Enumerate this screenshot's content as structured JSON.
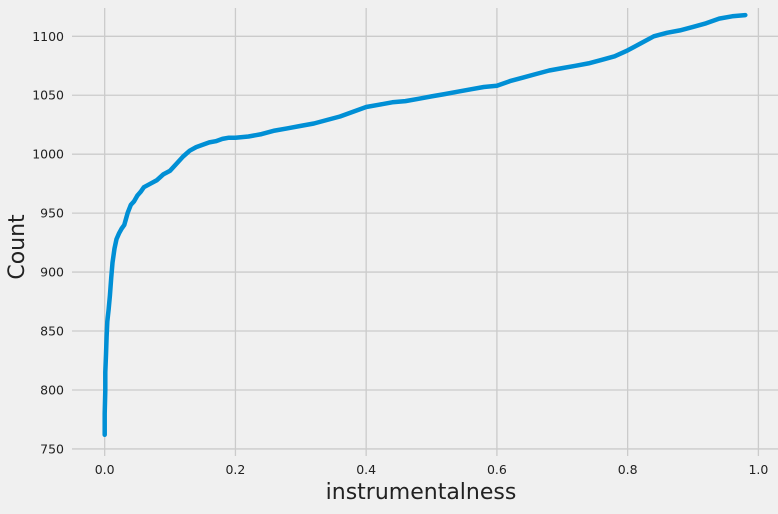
{
  "chart_data": {
    "type": "line",
    "title": "",
    "xlabel": "instrumentalness",
    "ylabel": "Count",
    "xlim": [
      -0.05,
      1.03
    ],
    "ylim": [
      744,
      1124
    ],
    "xticks": [
      0.0,
      0.2,
      0.4,
      0.6,
      0.8,
      1.0
    ],
    "xtick_labels": [
      "0.0",
      "0.2",
      "0.4",
      "0.6",
      "0.8",
      "1.0"
    ],
    "yticks": [
      750,
      800,
      850,
      900,
      950,
      1000,
      1050,
      1100
    ],
    "ytick_labels": [
      "750",
      "800",
      "850",
      "900",
      "950",
      "1000",
      "1050",
      "1100"
    ],
    "grid": true,
    "legend": "none",
    "colors": {
      "background": "#f0f0f0",
      "grid": "#cbcbcb",
      "line": "#008fd5",
      "text": "#222222"
    },
    "series": [
      {
        "color": "#008fd5",
        "x": [
          0.0,
          0.0,
          0.001,
          0.001,
          0.002,
          0.003,
          0.004,
          0.006,
          0.008,
          0.01,
          0.012,
          0.015,
          0.018,
          0.022,
          0.026,
          0.03,
          0.035,
          0.04,
          0.045,
          0.05,
          0.055,
          0.06,
          0.07,
          0.08,
          0.09,
          0.1,
          0.11,
          0.12,
          0.13,
          0.14,
          0.15,
          0.16,
          0.17,
          0.18,
          0.19,
          0.2,
          0.22,
          0.24,
          0.26,
          0.28,
          0.3,
          0.32,
          0.34,
          0.36,
          0.38,
          0.4,
          0.42,
          0.44,
          0.46,
          0.48,
          0.5,
          0.52,
          0.54,
          0.56,
          0.58,
          0.6,
          0.62,
          0.64,
          0.66,
          0.68,
          0.7,
          0.72,
          0.74,
          0.76,
          0.78,
          0.8,
          0.82,
          0.84,
          0.86,
          0.88,
          0.9,
          0.92,
          0.94,
          0.96,
          0.98
        ],
        "y": [
          762,
          780,
          800,
          815,
          830,
          845,
          858,
          868,
          880,
          895,
          908,
          920,
          928,
          933,
          937,
          940,
          950,
          957,
          960,
          965,
          968,
          972,
          975,
          978,
          983,
          986,
          992,
          998,
          1003,
          1006,
          1008,
          1010,
          1011,
          1013,
          1014,
          1014,
          1015,
          1017,
          1020,
          1022,
          1024,
          1026,
          1029,
          1032,
          1036,
          1040,
          1042,
          1044,
          1045,
          1047,
          1049,
          1051,
          1053,
          1055,
          1057,
          1058,
          1062,
          1065,
          1068,
          1071,
          1073,
          1075,
          1077,
          1080,
          1083,
          1088,
          1094,
          1100,
          1103,
          1105,
          1108,
          1111,
          1115,
          1117,
          1118
        ]
      }
    ]
  }
}
